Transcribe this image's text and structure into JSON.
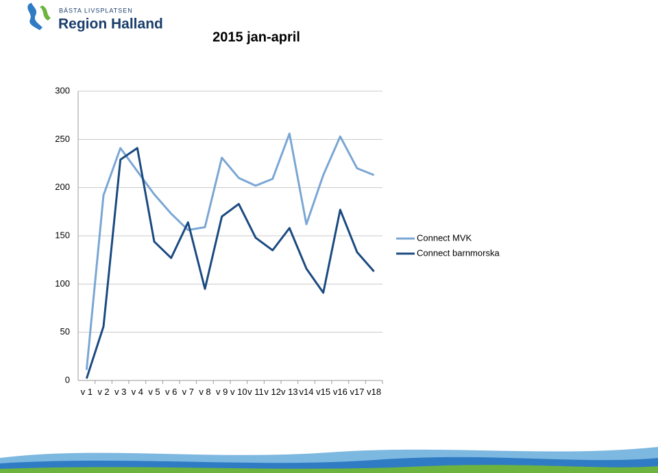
{
  "logo": {
    "tagline": "BÄSTA LIVSPLATSEN",
    "name": "Region Halland"
  },
  "chart_data": {
    "type": "line",
    "title": "2015 jan-april",
    "categories": [
      "v 1",
      "v 2",
      "v 3",
      "v 4",
      "v 5",
      "v 6",
      "v 7",
      "v 8",
      "v 9",
      "v 10",
      "v 11",
      "v 12",
      "v 13",
      "v14",
      "v15",
      "v16",
      "v17",
      "v18"
    ],
    "series": [
      {
        "name": "Connect MVK",
        "color": "#7aa6d4",
        "values": [
          11,
          192,
          241,
          217,
          193,
          173,
          156,
          159,
          231,
          210,
          202,
          209,
          256,
          162,
          213,
          253,
          220,
          213
        ]
      },
      {
        "name": "Connect barnmorska",
        "color": "#1a4a80",
        "values": [
          2,
          56,
          229,
          241,
          144,
          127,
          164,
          95,
          170,
          183,
          148,
          135,
          158,
          116,
          91,
          177,
          133,
          113
        ]
      }
    ],
    "ylim": [
      0,
      300
    ],
    "yticks": [
      0,
      50,
      100,
      150,
      200,
      250,
      300
    ],
    "grid": true,
    "legend": "right"
  }
}
